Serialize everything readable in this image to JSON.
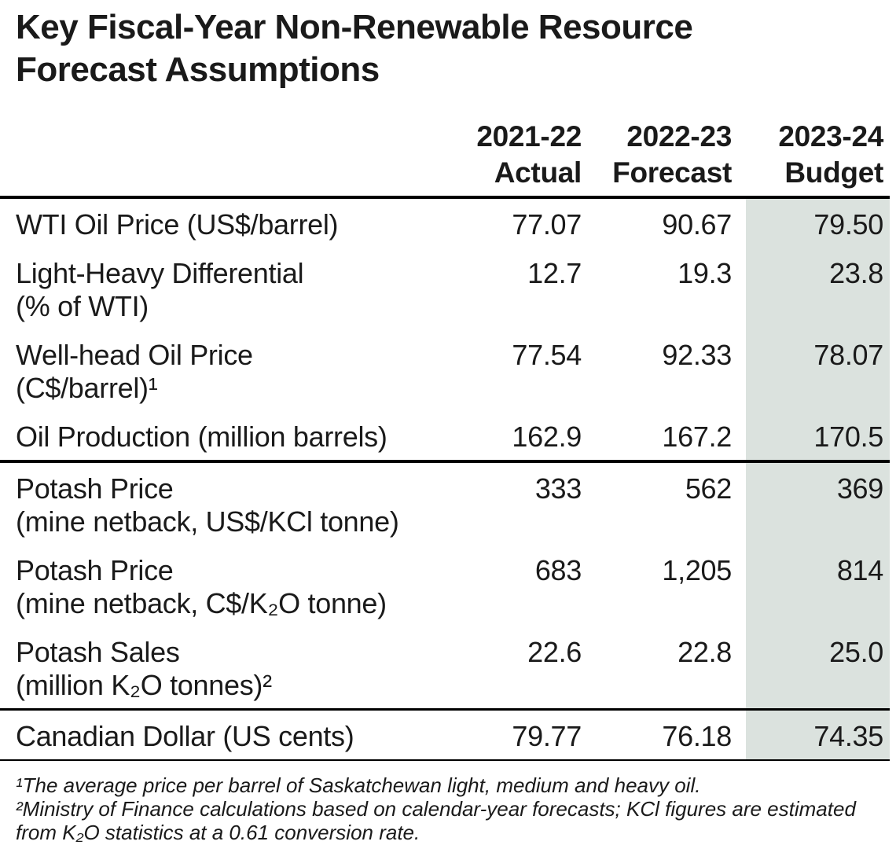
{
  "title": "Key Fiscal-Year Non-Renewable Resource Forecast Assumptions",
  "table": {
    "columns": [
      {
        "year": "2021-22",
        "label": "Actual"
      },
      {
        "year": "2022-23",
        "label": "Forecast"
      },
      {
        "year": "2023-24",
        "label": "Budget"
      }
    ],
    "rows": [
      {
        "label": "WTI Oil Price (US$/barrel)",
        "sub": "",
        "values": [
          "77.07",
          "90.67",
          "79.50"
        ]
      },
      {
        "label": "Light-Heavy Differential",
        "sub": "(% of WTI)",
        "values": [
          "12.7",
          "19.3",
          "23.8"
        ]
      },
      {
        "label": "Well-head Oil Price",
        "sub": "(C$/barrel)¹",
        "values": [
          "77.54",
          "92.33",
          "78.07"
        ]
      },
      {
        "label": "Oil Production (million barrels)",
        "sub": "",
        "values": [
          "162.9",
          "167.2",
          "170.5"
        ]
      },
      {
        "label": "Potash Price",
        "sub": "(mine netback, US$/KCl tonne)",
        "values": [
          "333",
          "562",
          "369"
        ]
      },
      {
        "label": "Potash Price",
        "sub": "(mine netback, C$/K₂O tonne)",
        "values": [
          "683",
          "1,205",
          "814"
        ]
      },
      {
        "label": "Potash Sales",
        "sub": "(million K₂O tonnes)²",
        "values": [
          "22.6",
          "22.8",
          "25.0"
        ]
      },
      {
        "label": "Canadian Dollar (US cents)",
        "sub": "",
        "values": [
          "79.77",
          "76.18",
          "74.35"
        ]
      }
    ]
  },
  "footnotes": [
    "¹The average price per barrel of Saskatchewan light, medium and heavy oil.",
    "²Ministry of Finance calculations based on calendar-year forecasts; KCl figures are estimated from K₂O statistics at a 0.61 conversion rate."
  ],
  "colors": {
    "budget_column_shade": "#dbe2de",
    "rule": "#000000",
    "text": "#1a1a1a"
  }
}
